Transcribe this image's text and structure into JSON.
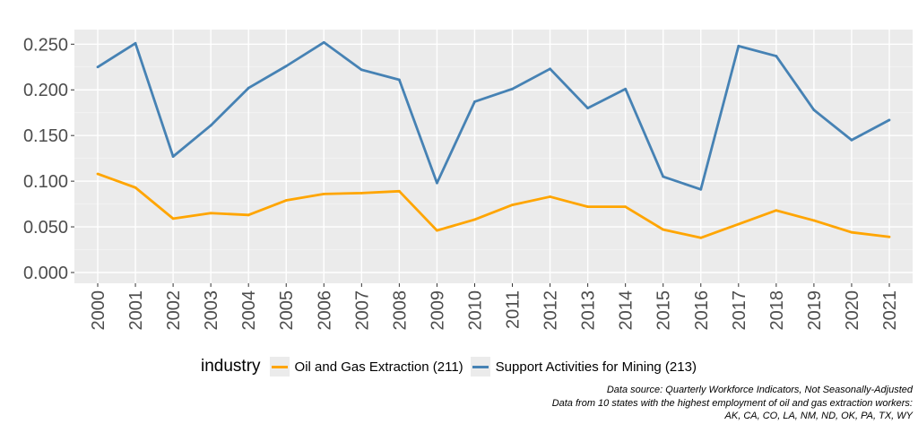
{
  "chart_data": {
    "type": "line",
    "x": [
      2000,
      2001,
      2002,
      2003,
      2004,
      2005,
      2006,
      2007,
      2008,
      2009,
      2010,
      2011,
      2012,
      2013,
      2014,
      2015,
      2016,
      2017,
      2018,
      2019,
      2020,
      2021
    ],
    "series": [
      {
        "name": "Oil and Gas Extraction (211)",
        "color": "#FFA500",
        "values": [
          0.108,
          0.093,
          0.059,
          0.065,
          0.063,
          0.079,
          0.086,
          0.087,
          0.089,
          0.046,
          0.058,
          0.074,
          0.083,
          0.072,
          0.072,
          0.047,
          0.038,
          0.053,
          0.068,
          0.057,
          0.044,
          0.039
        ]
      },
      {
        "name": "Support Activities for Mining (213)",
        "color": "#4682B4",
        "values": [
          0.225,
          0.251,
          0.127,
          0.161,
          0.202,
          0.226,
          0.252,
          0.222,
          0.211,
          0.098,
          0.187,
          0.201,
          0.223,
          0.18,
          0.201,
          0.105,
          0.091,
          0.248,
          0.237,
          0.178,
          0.145,
          0.167
        ]
      }
    ],
    "yticks": [
      "0.000",
      "0.050",
      "0.100",
      "0.150",
      "0.200",
      "0.250"
    ],
    "ylim": [
      -0.012,
      0.268
    ],
    "grid": true,
    "legend_title": "industry",
    "legend_position": "bottom"
  },
  "caption": [
    "Data source: Quarterly Workforce Indicators, Not Seasonally-Adjusted",
    "Data from 10 states with the highest employment of oil and gas extraction workers:",
    "AK, CA, CO, LA, NM, ND, OK, PA, TX, WY"
  ]
}
